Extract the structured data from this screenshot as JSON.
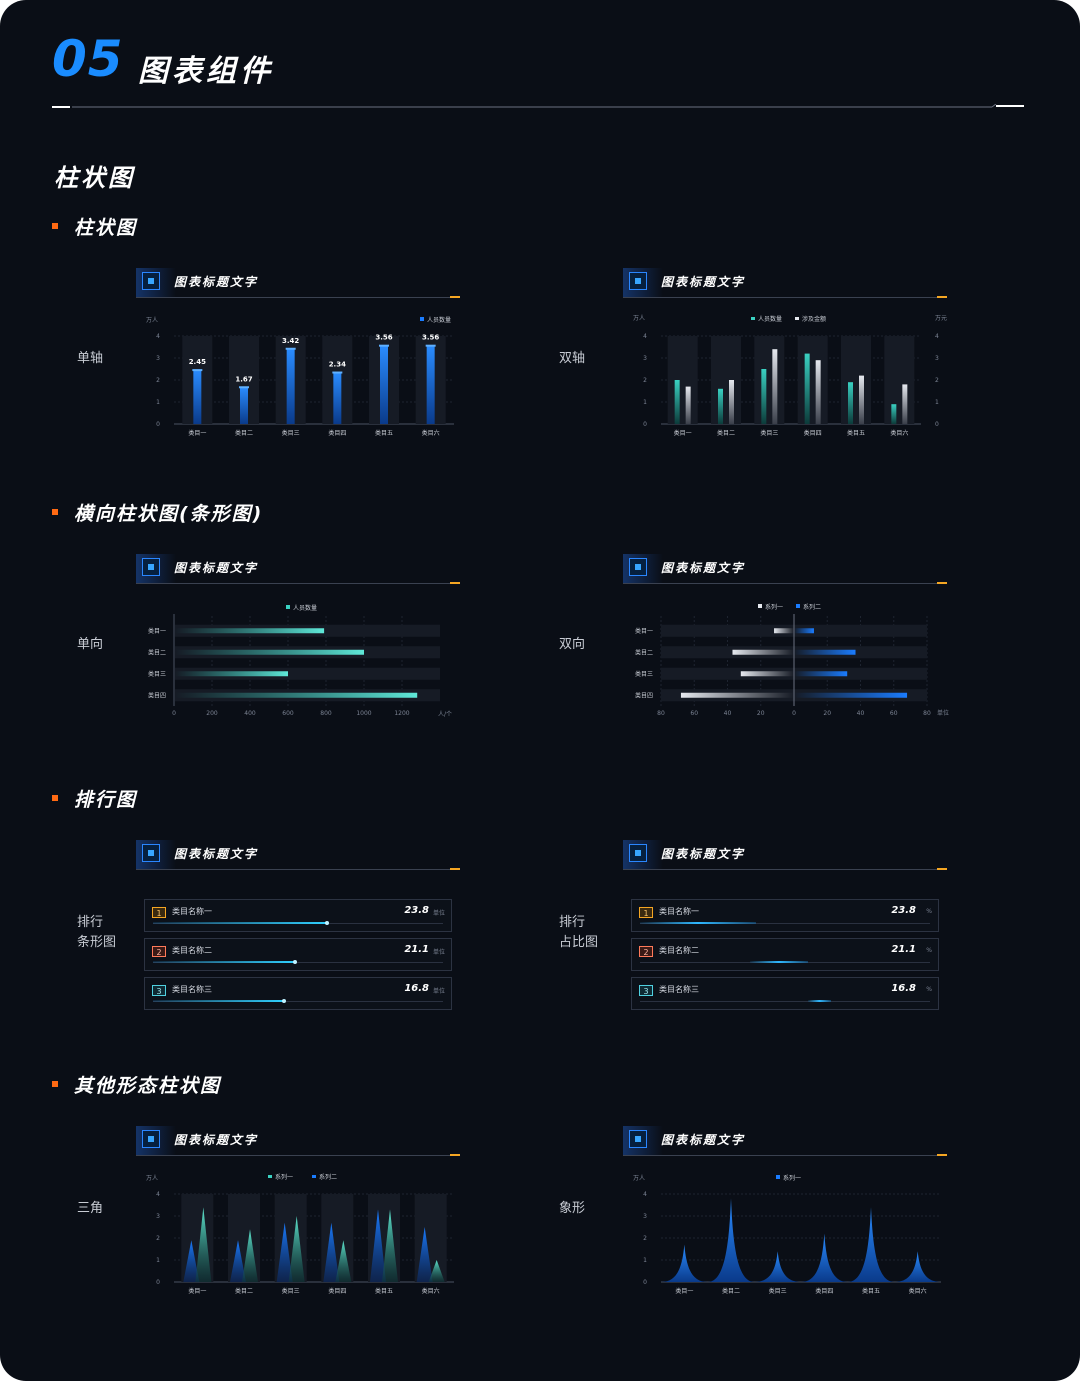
{
  "header": {
    "number": "05",
    "title": "图表组件"
  },
  "section_title": "柱状图",
  "subsections": [
    {
      "title": "柱状图"
    },
    {
      "title": "横向柱状图(条形图)"
    },
    {
      "title": "排行图"
    },
    {
      "title": "其他形态柱状图"
    }
  ],
  "row_labels": {
    "single_axis": "单轴",
    "dual_axis": "双轴",
    "one_way": "单向",
    "two_way": "双向",
    "rank_bar_1": "排行",
    "rank_bar_2": "条形图",
    "rank_share_1": "排行",
    "rank_share_2": "占比图",
    "triangle": "三角",
    "pictorial": "象形"
  },
  "panel_title": "图表标题文字",
  "colors": {
    "blue": "#1a7cff",
    "teal": "#3ad1c2",
    "white": "#e6e9ef",
    "orange": "#ff6a13",
    "accent": "#f5a623"
  },
  "chart_data": [
    {
      "id": "single",
      "type": "bar",
      "ylabel": "万人",
      "legend": [
        "人员数量"
      ],
      "categories": [
        "类目一",
        "类目二",
        "类目三",
        "类目四",
        "类目五",
        "类目六"
      ],
      "yticks": [
        "0",
        "1",
        "2",
        "3",
        "4"
      ],
      "ylim": [
        0,
        4
      ],
      "values": [
        2.45,
        1.67,
        3.42,
        2.34,
        3.56,
        3.56
      ],
      "value_labels": [
        "2.45",
        "1.67",
        "3.42",
        "2.34",
        "3.56",
        "3.56"
      ]
    },
    {
      "id": "dual",
      "type": "bar",
      "ylabel": "万人",
      "ylabel_right": "万元",
      "legend": [
        "人员数量",
        "涉及金额"
      ],
      "categories": [
        "类目一",
        "类目二",
        "类目三",
        "类目四",
        "类目五",
        "类目六"
      ],
      "yticks": [
        "0",
        "1",
        "2",
        "3",
        "4"
      ],
      "ylim": [
        0,
        4
      ],
      "series": [
        {
          "name": "人员数量",
          "values": [
            2.0,
            1.6,
            2.5,
            3.2,
            1.9,
            0.9
          ]
        },
        {
          "name": "涉及金额",
          "values": [
            1.7,
            2.0,
            3.4,
            2.9,
            2.2,
            1.8
          ]
        }
      ]
    },
    {
      "id": "hbar",
      "type": "bar",
      "orientation": "horizontal",
      "legend": [
        "人员数量"
      ],
      "categories": [
        "类目一",
        "类目二",
        "类目三",
        "类目四"
      ],
      "xticks": [
        "0",
        "200",
        "400",
        "600",
        "800",
        "1000",
        "1200"
      ],
      "xunit": "人/个",
      "xlim": [
        0,
        1400
      ],
      "values": [
        790,
        1000,
        600,
        1280
      ]
    },
    {
      "id": "diverging",
      "type": "bar",
      "orientation": "horizontal",
      "legend": [
        "系列一",
        "系列二"
      ],
      "categories": [
        "类目一",
        "类目二",
        "类目三",
        "类目四"
      ],
      "xticks": [
        "80",
        "60",
        "40",
        "20",
        "0",
        "20",
        "40",
        "60",
        "80"
      ],
      "xunit": "单位",
      "xlim": [
        -80,
        80
      ],
      "series": [
        {
          "name": "系列一",
          "values": [
            12,
            37,
            32,
            68
          ]
        },
        {
          "name": "系列二",
          "values": [
            12,
            37,
            32,
            68
          ]
        }
      ]
    },
    {
      "id": "rank_bar",
      "type": "bar",
      "items": [
        {
          "rank": "1",
          "name": "类目名称一",
          "value": "23.8",
          "unit": "单位",
          "ratio": 0.6
        },
        {
          "rank": "2",
          "name": "类目名称二",
          "value": "21.1",
          "unit": "单位",
          "ratio": 0.49
        },
        {
          "rank": "3",
          "name": "类目名称三",
          "value": "16.8",
          "unit": "单位",
          "ratio": 0.45
        }
      ]
    },
    {
      "id": "rank_share",
      "type": "bar",
      "items": [
        {
          "rank": "1",
          "name": "类目名称一",
          "value": "23.8",
          "unit": "%",
          "ratio": 0.4
        },
        {
          "rank": "2",
          "name": "类目名称二",
          "value": "21.1",
          "unit": "%",
          "ratio": 0.2
        },
        {
          "rank": "3",
          "name": "类目名称三",
          "value": "16.8",
          "unit": "%",
          "ratio": 0.08
        }
      ]
    },
    {
      "id": "triangle",
      "type": "bar",
      "ylabel": "万人",
      "legend": [
        "系列一",
        "系列二"
      ],
      "categories": [
        "类目一",
        "类目二",
        "类目三",
        "类目四",
        "类目五",
        "类目六"
      ],
      "yticks": [
        "0",
        "1",
        "2",
        "3",
        "4"
      ],
      "ylim": [
        0,
        4
      ],
      "series": [
        {
          "name": "系列一",
          "values": [
            1.9,
            1.9,
            2.7,
            2.7,
            3.3,
            2.5
          ]
        },
        {
          "name": "系列二",
          "values": [
            3.4,
            2.4,
            3.0,
            1.9,
            3.3,
            1.0
          ]
        }
      ]
    },
    {
      "id": "pictorial",
      "type": "bar",
      "ylabel": "万人",
      "legend": [
        "系列一"
      ],
      "categories": [
        "类目一",
        "类目二",
        "类目三",
        "类目四",
        "类目五",
        "类目六"
      ],
      "yticks": [
        "0",
        "1",
        "2",
        "3",
        "4"
      ],
      "ylim": [
        0,
        4
      ],
      "values": [
        1.7,
        3.8,
        1.4,
        2.2,
        3.4,
        1.4
      ]
    }
  ]
}
